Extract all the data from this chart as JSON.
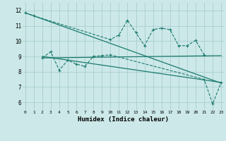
{
  "upper_x": [
    0,
    1,
    10,
    11,
    12,
    13,
    14,
    15,
    16,
    17,
    18,
    19,
    20,
    21
  ],
  "upper_y": [
    11.85,
    11.65,
    10.1,
    10.4,
    11.35,
    10.55,
    9.7,
    10.75,
    10.85,
    10.75,
    9.7,
    9.7,
    10.05,
    9.1
  ],
  "lower_x": [
    2,
    3,
    4,
    5,
    6,
    7,
    8,
    9,
    10,
    21,
    22,
    23
  ],
  "lower_y": [
    8.9,
    9.3,
    8.1,
    8.75,
    8.5,
    8.35,
    9.0,
    9.05,
    9.1,
    7.5,
    5.9,
    7.3
  ],
  "trend1_x": [
    0,
    23
  ],
  "trend1_y": [
    11.85,
    7.25
  ],
  "trend2_x": [
    2,
    23
  ],
  "trend2_y": [
    8.9,
    9.05
  ],
  "trend3_x": [
    2,
    23
  ],
  "trend3_y": [
    9.0,
    7.3
  ],
  "xlabel": "Humidex (Indice chaleur)",
  "ylim": [
    5.5,
    12.5
  ],
  "xlim": [
    -0.3,
    23.3
  ],
  "yticks": [
    6,
    7,
    8,
    9,
    10,
    11,
    12
  ],
  "xticks": [
    0,
    1,
    2,
    3,
    4,
    5,
    6,
    7,
    8,
    9,
    10,
    11,
    12,
    13,
    14,
    15,
    16,
    17,
    18,
    19,
    20,
    21,
    22,
    23
  ],
  "color": "#1a7a6e",
  "bg_color": "#cce8e8",
  "grid_color": "#aacece"
}
